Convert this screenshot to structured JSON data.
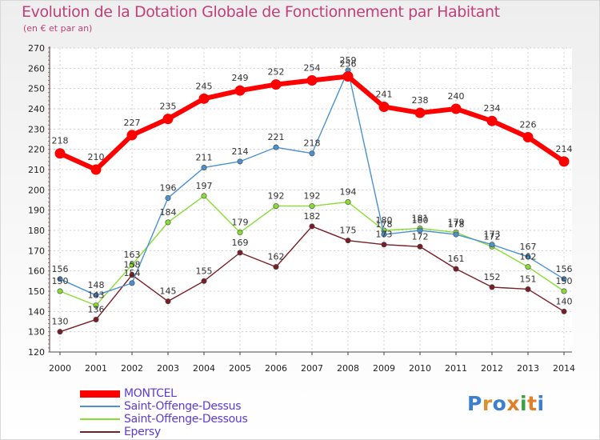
{
  "chart_data": {
    "type": "line",
    "title": "Evolution de la Dotation Globale de Fonctionnement par Habitant",
    "subtitle": "(en € et par an)",
    "xlabel": "",
    "ylabel": "",
    "ylim": [
      120,
      270
    ],
    "yticks": [
      120,
      130,
      140,
      150,
      160,
      170,
      180,
      190,
      200,
      210,
      220,
      230,
      240,
      250,
      260,
      270
    ],
    "x": [
      "2000",
      "2001",
      "2002",
      "2003",
      "2004",
      "2005",
      "2006",
      "2007",
      "2008",
      "2009",
      "2010",
      "2011",
      "2012",
      "2013",
      "2014"
    ],
    "grid": true,
    "legend_position": "bottom-left",
    "series": [
      {
        "name": "MONTCEL",
        "color": "#ff0000",
        "values": [
          218,
          210,
          227,
          235,
          245,
          249,
          252,
          254,
          256,
          241,
          238,
          240,
          234,
          226,
          214
        ]
      },
      {
        "name": "Saint-Offenge-Dessus",
        "color": "#4b91d2",
        "values": [
          156,
          148,
          154,
          196,
          211,
          214,
          221,
          218,
          259,
          178,
          180,
          178,
          173,
          167,
          156
        ]
      },
      {
        "name": "Saint-Offenge-Dessous",
        "color": "#88dd33",
        "values": [
          150,
          143,
          163,
          184,
          197,
          179,
          192,
          192,
          194,
          180,
          181,
          179,
          172,
          162,
          150
        ]
      },
      {
        "name": "Epersy",
        "color": "#7a1e26",
        "values": [
          130,
          136,
          158,
          145,
          155,
          169,
          162,
          182,
          175,
          173,
          172,
          161,
          152,
          151,
          140
        ]
      }
    ]
  },
  "logo": {
    "text": "Proxiti"
  }
}
